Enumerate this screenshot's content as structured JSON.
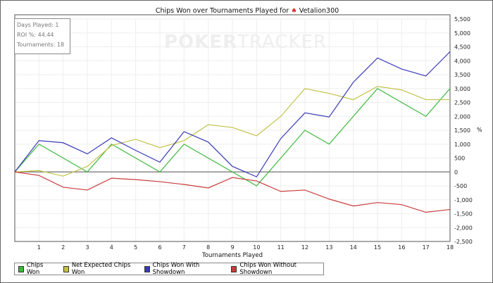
{
  "chart_data": {
    "type": "line",
    "title": "Chips Won over Tournaments Played for",
    "player": "Vetalion300",
    "xlabel": "Tournaments Played",
    "ylabel": "%",
    "x": [
      0,
      1,
      2,
      3,
      4,
      5,
      6,
      7,
      8,
      9,
      10,
      11,
      12,
      13,
      14,
      15,
      16,
      17,
      18
    ],
    "xticks": [
      1,
      2,
      3,
      4,
      5,
      6,
      7,
      8,
      9,
      10,
      11,
      12,
      13,
      14,
      15,
      16,
      17,
      18
    ],
    "ylim": [
      -2500,
      5500
    ],
    "yticks": [
      -2500,
      -2000,
      -1500,
      -1000,
      -500,
      0,
      500,
      1000,
      1500,
      2000,
      2500,
      3000,
      3500,
      4000,
      4500,
      5000,
      5500
    ],
    "ytick_labels": [
      "-2,500",
      "-2,000",
      "-1,500",
      "-1,000",
      "-500",
      "0",
      "500",
      "1,000",
      "1,500",
      "2,000",
      "2,500",
      "3,000",
      "3,500",
      "4,000",
      "4,500",
      "5,000",
      "5,500"
    ],
    "grid": true,
    "legend_position": "bottom-left",
    "series": [
      {
        "name": "Chips Won",
        "color": "#3cb83c",
        "values": [
          0,
          1000,
          500,
          0,
          1000,
          500,
          0,
          1000,
          500,
          0,
          -500,
          500,
          1500,
          1000,
          2000,
          3000,
          2500,
          2000,
          3000
        ]
      },
      {
        "name": "Net Expected Chips Won",
        "color": "#c2c24a",
        "values": [
          0,
          50,
          -150,
          200,
          950,
          1175,
          875,
          1125,
          1700,
          1600,
          1300,
          2000,
          3000,
          2825,
          2600,
          3075,
          2950,
          2600,
          2600
        ]
      },
      {
        "name": "Chips Won With Showdown",
        "color": "#3a3ab8",
        "values": [
          0,
          1125,
          1050,
          650,
          1225,
          775,
          350,
          1450,
          1075,
          200,
          -175,
          1200,
          2125,
          1975,
          3225,
          4100,
          3700,
          3450,
          4325
        ]
      },
      {
        "name": "Chips Won Without Showdown",
        "color": "#c83c3c",
        "values": [
          0,
          -125,
          -550,
          -650,
          -225,
          -275,
          -350,
          -450,
          -575,
          -200,
          -325,
          -700,
          -650,
          -975,
          -1225,
          -1100,
          -1175,
          -1450,
          -1350
        ]
      }
    ]
  },
  "info": {
    "days": "Days Played: 1",
    "roi": "ROI %: 44.44",
    "tournaments": "Tournaments: 18"
  },
  "watermark": {
    "a": "POKER",
    "b": "TRACKER"
  }
}
